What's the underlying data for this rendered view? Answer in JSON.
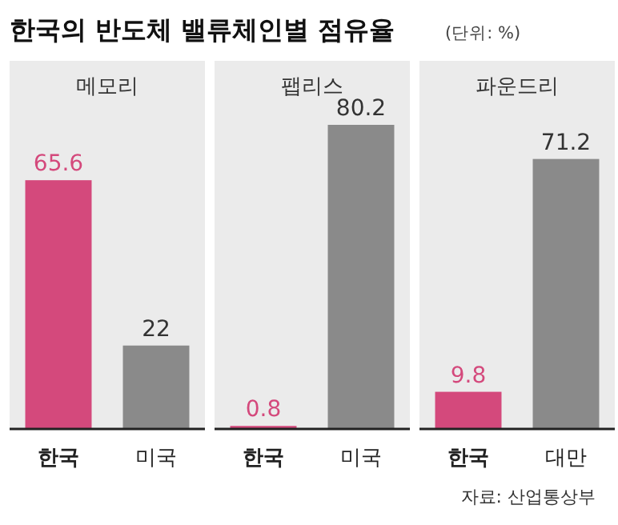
{
  "chart_data": [
    {
      "type": "other",
      "title": "한국의 반도체 밸류체인별 점유율",
      "subtitle": "(단위: %)",
      "annotations": [
        "자료: 산업통상부"
      ]
    },
    {
      "type": "bar",
      "title": "메모리",
      "categories": [
        "한국",
        "미국"
      ],
      "values": [
        65.6,
        22
      ],
      "colors": [
        "#d4497c",
        "#8a8a8a"
      ],
      "data_labels": true
    },
    {
      "type": "bar",
      "title": "팹리스",
      "categories": [
        "한국",
        "미국"
      ],
      "values": [
        0.8,
        80.2
      ],
      "colors": [
        "#d4497c",
        "#8a8a8a"
      ],
      "data_labels": true
    },
    {
      "type": "bar",
      "title": "파운드리",
      "categories": [
        "한국",
        "대만"
      ],
      "values": [
        9.8,
        71.2
      ],
      "colors": [
        "#d4497c",
        "#8a8a8a"
      ],
      "data_labels": true
    }
  ]
}
